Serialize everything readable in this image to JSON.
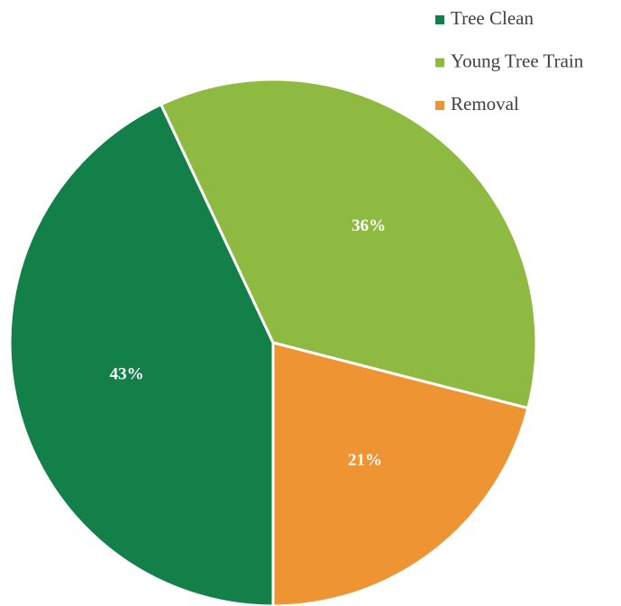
{
  "chart_data": {
    "type": "pie",
    "categories": [
      "Tree Clean",
      "Young Tree Train",
      "Removal"
    ],
    "values": [
      43,
      36,
      21
    ],
    "value_labels": [
      "43%",
      "36%",
      "21%"
    ],
    "colors": [
      "#13804a",
      "#8fba41",
      "#ef9433"
    ],
    "legend": "top-right"
  }
}
